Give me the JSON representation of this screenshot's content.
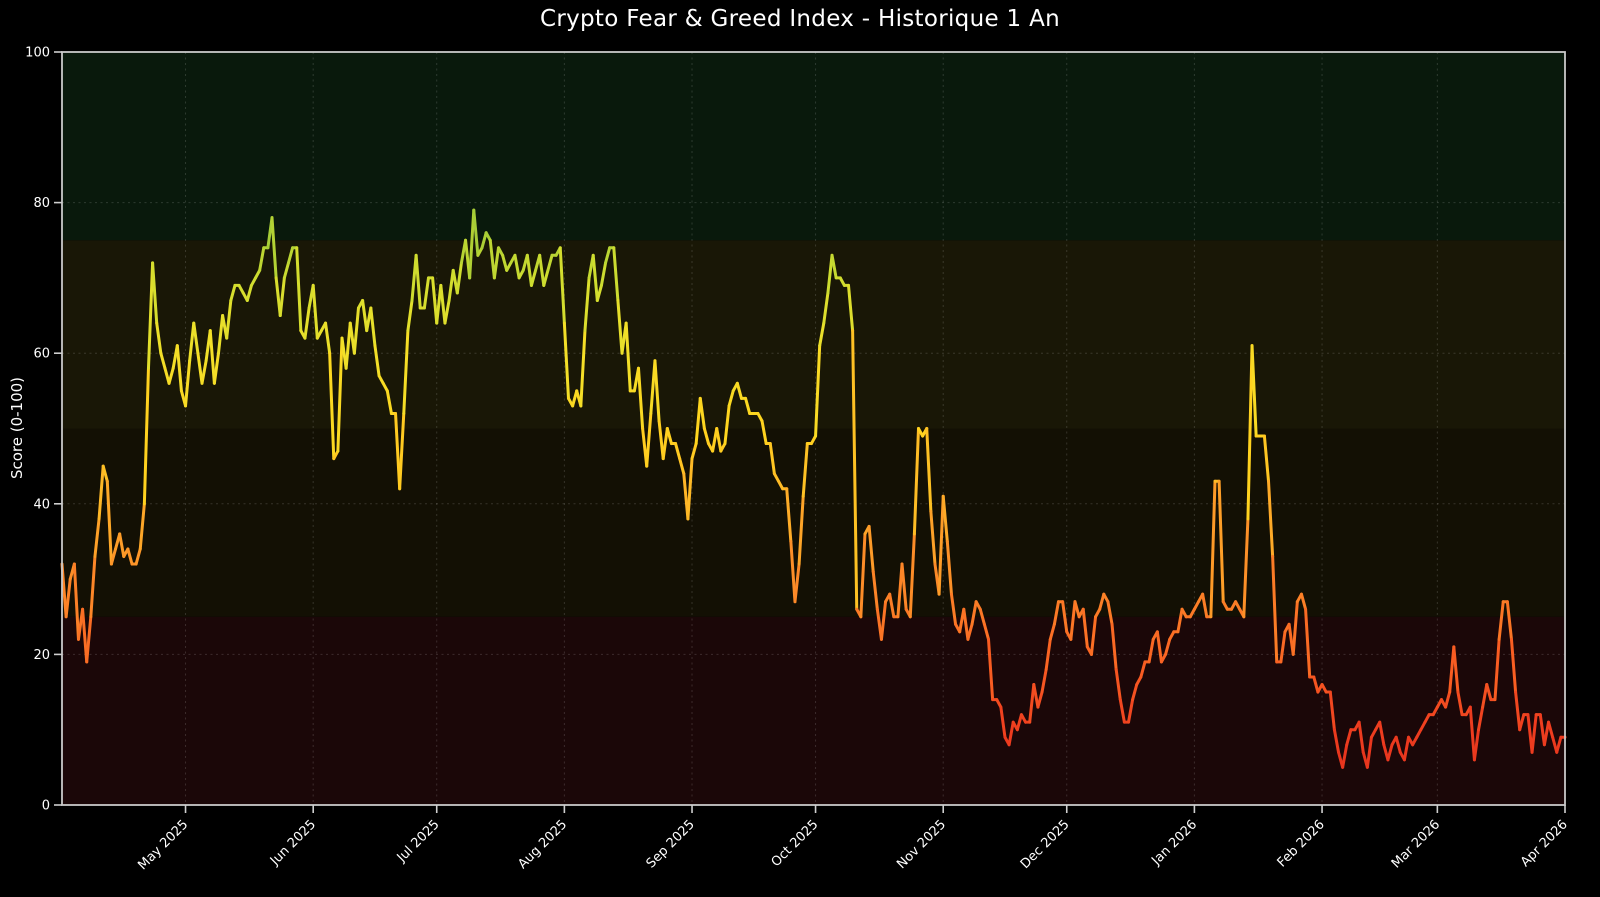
{
  "page": {
    "background": "#000000"
  },
  "header": {
    "title": "Crypto Fear & Greed Index - Historique 1 An"
  },
  "chart_data": {
    "type": "line",
    "title": "Crypto Fear & Greed Index - Historique 1 An",
    "xlabel": "",
    "ylabel": "Score (0-100)",
    "ylim": [
      0,
      100
    ],
    "yticks": [
      0,
      20,
      40,
      60,
      80,
      100
    ],
    "x_range_days": [
      0,
      365
    ],
    "x_tick_days": [
      30,
      61,
      91,
      122,
      153,
      183,
      214,
      244,
      275,
      306,
      334,
      365
    ],
    "x_tick_labels": [
      "May 2025",
      "Jun 2025",
      "Jul 2025",
      "Aug 2025",
      "Sep 2025",
      "Oct 2025",
      "Nov 2025",
      "Dec 2025",
      "Jan 2026",
      "Feb 2026",
      "Mar 2026",
      "Apr 2026"
    ],
    "grid": "dashed",
    "legend_position": "none",
    "line_width": 3,
    "colormap_stops": [
      [
        0,
        "#dc2a1b"
      ],
      [
        10,
        "#ee3d1f"
      ],
      [
        20,
        "#fa6423"
      ],
      [
        30,
        "#fc8a28"
      ],
      [
        40,
        "#feb228"
      ],
      [
        50,
        "#ffd41e"
      ],
      [
        60,
        "#f2e029"
      ],
      [
        70,
        "#cfdd2f"
      ],
      [
        75,
        "#accf35"
      ],
      [
        80,
        "#8cc63f"
      ],
      [
        100,
        "#4bb43a"
      ]
    ],
    "bands": [
      {
        "label": "extreme-fear",
        "from": 0,
        "to": 25,
        "color": "#1b0708"
      },
      {
        "label": "fear",
        "from": 25,
        "to": 50,
        "color": "#131004"
      },
      {
        "label": "greed",
        "from": 50,
        "to": 75,
        "color": "#191706"
      },
      {
        "label": "extreme-greed",
        "from": 75,
        "to": 100,
        "color": "#09190c"
      }
    ],
    "series": [
      {
        "name": "Fear & Greed Index",
        "start_day": 0,
        "daily_values": [
          32,
          25,
          30,
          32,
          22,
          26,
          19,
          25,
          33,
          38,
          45,
          43,
          32,
          34,
          36,
          33,
          34,
          32,
          32,
          34,
          40,
          58,
          72,
          64,
          60,
          58,
          56,
          58,
          61,
          55,
          53,
          59,
          64,
          60,
          56,
          59,
          63,
          56,
          60,
          65,
          62,
          67,
          69,
          69,
          68,
          67,
          69,
          70,
          71,
          74,
          74,
          78,
          70,
          65,
          70,
          72,
          74,
          74,
          63,
          62,
          66,
          69,
          62,
          63,
          64,
          60,
          46,
          47,
          62,
          58,
          64,
          60,
          66,
          67,
          63,
          66,
          61,
          57,
          56,
          55,
          52,
          52,
          42,
          52,
          63,
          67,
          73,
          66,
          66,
          70,
          70,
          64,
          69,
          64,
          67,
          71,
          68,
          72,
          75,
          70,
          79,
          73,
          74,
          76,
          75,
          70,
          74,
          73,
          71,
          72,
          73,
          70,
          71,
          73,
          69,
          71,
          73,
          69,
          71,
          73,
          73,
          74,
          64,
          54,
          53,
          55,
          53,
          63,
          70,
          73,
          67,
          69,
          72,
          74,
          74,
          67,
          60,
          64,
          55,
          55,
          58,
          50,
          45,
          52,
          59,
          51,
          46,
          50,
          48,
          48,
          46,
          44,
          38,
          46,
          48,
          54,
          50,
          48,
          47,
          50,
          47,
          48,
          53,
          55,
          56,
          54,
          54,
          52,
          52,
          52,
          51,
          48,
          48,
          44,
          43,
          42,
          42,
          35,
          27,
          32,
          41,
          48,
          48,
          49,
          61,
          64,
          68,
          73,
          70,
          70,
          69,
          69,
          63,
          26,
          25,
          36,
          37,
          31,
          26,
          22,
          27,
          28,
          25,
          25,
          32,
          26,
          25,
          36,
          50,
          49,
          50,
          39,
          32,
          28,
          41,
          35,
          28,
          24,
          23,
          26,
          22,
          24,
          27,
          26,
          24,
          22,
          14,
          14,
          13,
          9,
          8,
          11,
          10,
          12,
          11,
          11,
          16,
          13,
          15,
          18,
          22,
          24,
          27,
          27,
          23,
          22,
          27,
          25,
          26,
          21,
          20,
          25,
          26,
          28,
          27,
          24,
          18,
          14,
          11,
          11,
          14,
          16,
          17,
          19,
          19,
          22,
          23,
          19,
          20,
          22,
          23,
          23,
          26,
          25,
          25,
          26,
          27,
          28,
          25,
          25,
          43,
          43,
          27,
          26,
          26,
          27,
          26,
          25,
          38,
          61,
          49,
          49,
          49,
          43,
          33,
          19,
          19,
          23,
          24,
          20,
          27,
          28,
          26,
          17,
          17,
          15,
          16,
          15,
          15,
          10,
          7,
          5,
          8,
          10,
          10,
          11,
          7,
          5,
          9,
          10,
          11,
          8,
          6,
          8,
          9,
          7,
          6,
          9,
          8,
          9,
          10,
          11,
          12,
          12,
          13,
          14,
          13,
          15,
          21,
          15,
          12,
          12,
          13,
          6,
          10,
          13,
          16,
          14,
          14,
          22,
          27,
          27,
          22,
          15,
          10,
          12,
          12,
          7,
          12,
          12,
          8,
          11,
          9,
          7,
          9,
          9
        ]
      }
    ]
  },
  "axes_style": {
    "spine_color": "#c9c9c9",
    "tick_color": "#cfcfcf",
    "tick_label_color": "#ffffff",
    "grid_color": "rgba(255,255,255,0.15)",
    "tick_font_size": 13
  }
}
